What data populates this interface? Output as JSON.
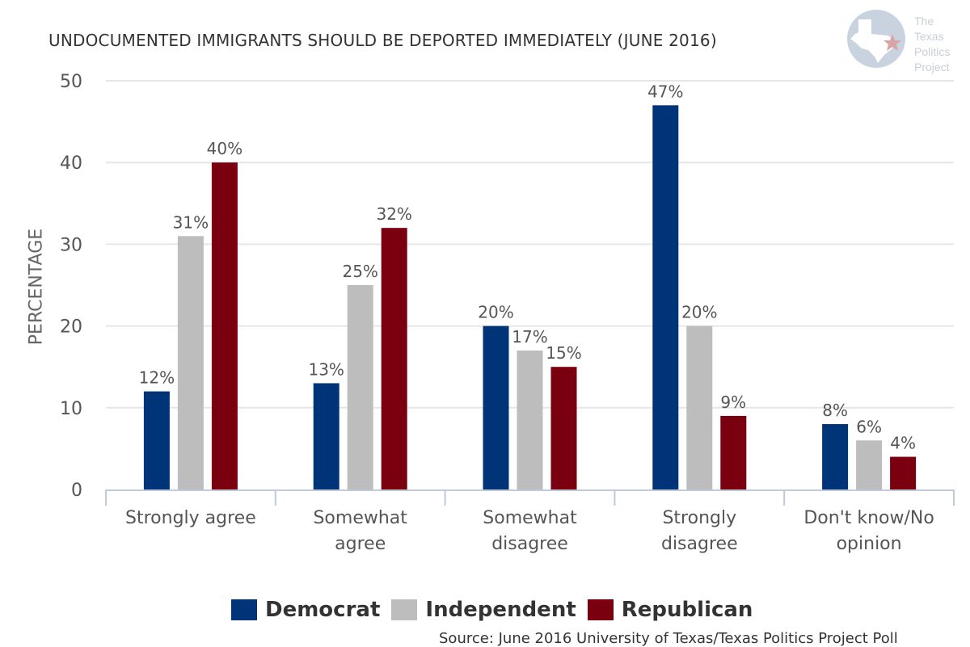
{
  "chart_data": {
    "type": "bar",
    "title": "UNDOCUMENTED IMMIGRANTS SHOULD BE DEPORTED IMMEDIATELY (JUNE 2016)",
    "xlabel": "",
    "ylabel": "PERCENTAGE",
    "ylim": [
      0,
      50
    ],
    "yticks": [
      0,
      10,
      20,
      30,
      40,
      50
    ],
    "grid": true,
    "legend_position": "bottom",
    "categories": [
      [
        "Strongly agree"
      ],
      [
        "Somewhat",
        "agree"
      ],
      [
        "Somewhat",
        "disagree"
      ],
      [
        "Strongly",
        "disagree"
      ],
      [
        "Don't know/No",
        "opinion"
      ]
    ],
    "series": [
      {
        "name": "Democrat",
        "color": "#003478",
        "values": [
          12,
          13,
          20,
          47,
          8
        ],
        "labels": [
          "12%",
          "13%",
          "20%",
          "47%",
          "8%"
        ]
      },
      {
        "name": "Independent",
        "color": "#bdbdbd",
        "values": [
          31,
          25,
          17,
          20,
          6
        ],
        "labels": [
          "31%",
          "25%",
          "17%",
          "20%",
          "6%"
        ]
      },
      {
        "name": "Republican",
        "color": "#7a0010",
        "values": [
          40,
          32,
          15,
          9,
          4
        ],
        "labels": [
          "40%",
          "32%",
          "15%",
          "9%",
          "4%"
        ]
      }
    ]
  },
  "logo": {
    "lines": [
      "The",
      "Texas",
      "Politics",
      "Project"
    ]
  },
  "source": "Source: June 2016 University of Texas/Texas Politics Project Poll"
}
